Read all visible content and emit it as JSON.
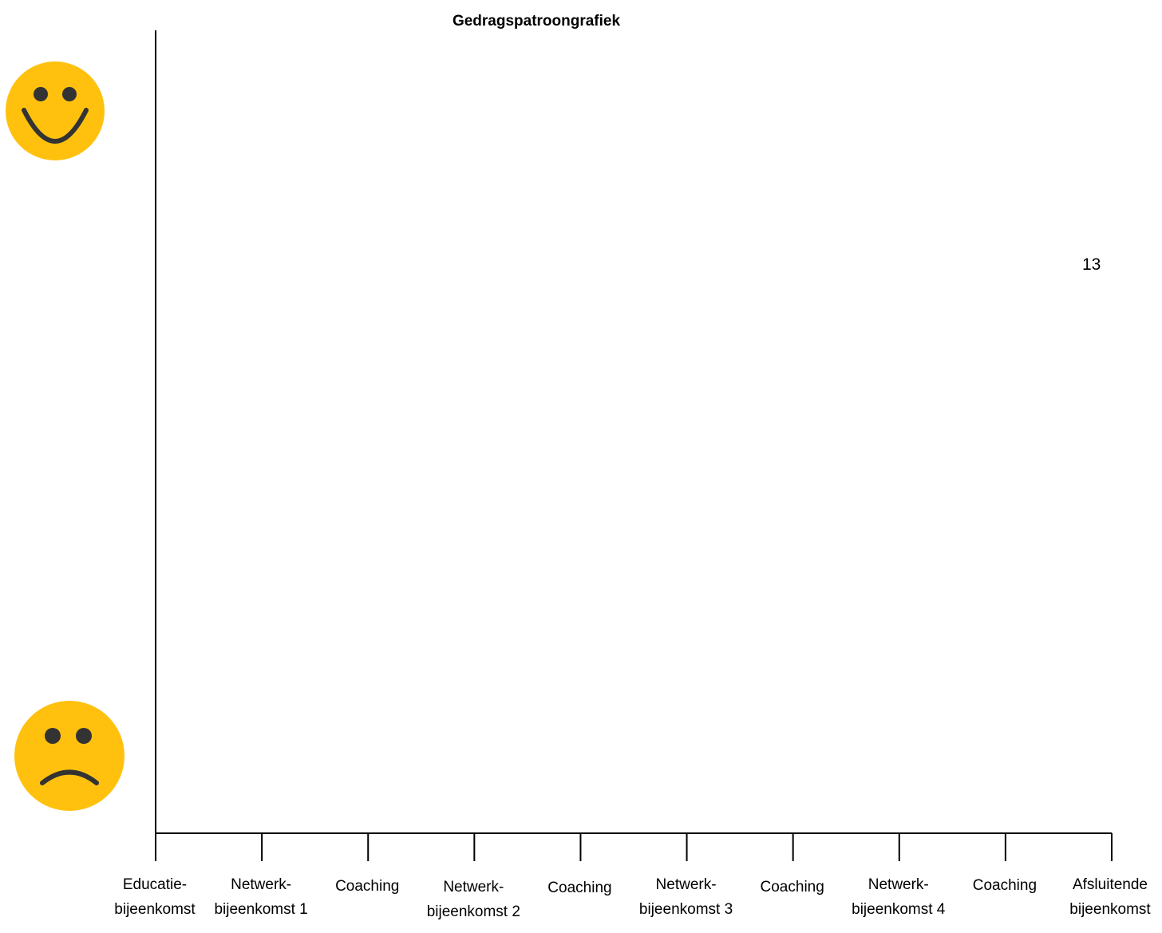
{
  "chart_data": {
    "type": "line",
    "title": "Gedragspatroongrafiek",
    "categories": [
      "Educatie-\nbijeenkomst",
      "Netwerk-\nbijeenkomst 1",
      "Coaching",
      "Netwerk-\nbijeenkomst 2",
      "Coaching",
      "Netwerk-\nbijeenkomst 3",
      "Coaching",
      "Netwerk-\nbijeenkomst 4",
      "Coaching",
      "Afsluitende\nbijeenkomst"
    ],
    "series": [],
    "xlabel": "",
    "ylabel": "",
    "y_axis_icons": {
      "top": "happy-face-icon",
      "bottom": "sad-face-icon"
    },
    "grid": false
  },
  "page_number": "13",
  "colors": {
    "face": "#FFC10E",
    "face_features": "#333333",
    "axis": "#000000"
  }
}
